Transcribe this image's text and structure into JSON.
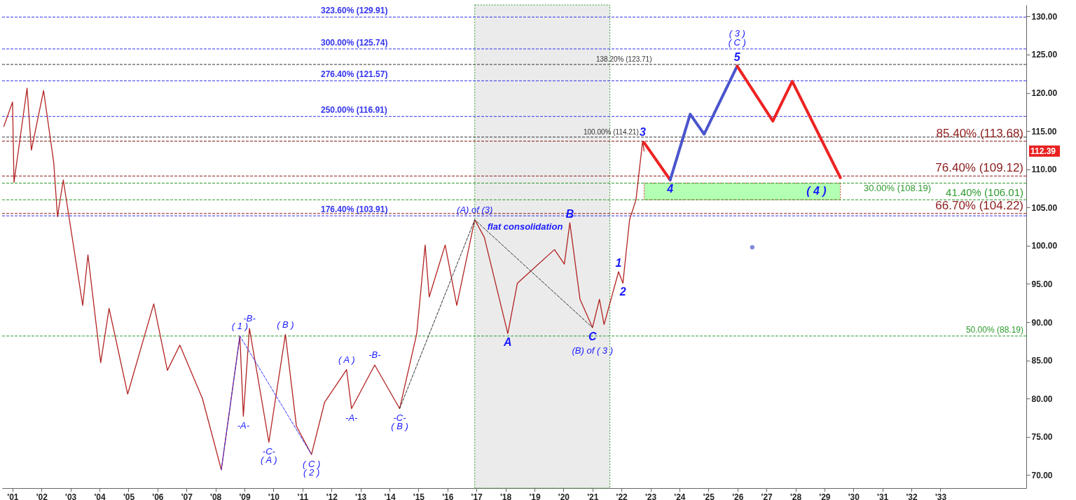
{
  "chart_data": {
    "type": "line",
    "xlim": [
      2000.64,
      2035.96
    ],
    "ylim": [
      68.3,
      131.5
    ],
    "xticks": [
      {
        "value": 2001,
        "label": "'01"
      },
      {
        "value": 2002,
        "label": "'02"
      },
      {
        "value": 2003,
        "label": "'03"
      },
      {
        "value": 2004,
        "label": "'04"
      },
      {
        "value": 2005,
        "label": "'05"
      },
      {
        "value": 2006,
        "label": "'06"
      },
      {
        "value": 2007,
        "label": "'07"
      },
      {
        "value": 2008,
        "label": "'08"
      },
      {
        "value": 2009,
        "label": "'09"
      },
      {
        "value": 2010,
        "label": "'10"
      },
      {
        "value": 2011,
        "label": "'11"
      },
      {
        "value": 2012,
        "label": "'12"
      },
      {
        "value": 2013,
        "label": "'13"
      },
      {
        "value": 2014,
        "label": "'14"
      },
      {
        "value": 2015,
        "label": "'15"
      },
      {
        "value": 2016,
        "label": "'16"
      },
      {
        "value": 2017,
        "label": "'17"
      },
      {
        "value": 2018,
        "label": "'18"
      },
      {
        "value": 2019,
        "label": "'19"
      },
      {
        "value": 2020,
        "label": "'20"
      },
      {
        "value": 2021,
        "label": "'21"
      },
      {
        "value": 2022,
        "label": "'22"
      },
      {
        "value": 2023,
        "label": "'23"
      },
      {
        "value": 2024,
        "label": "'24"
      },
      {
        "value": 2025,
        "label": "'25"
      },
      {
        "value": 2026,
        "label": "'26"
      },
      {
        "value": 2027,
        "label": "'27"
      },
      {
        "value": 2028,
        "label": "'28"
      },
      {
        "value": 2029,
        "label": "'29"
      },
      {
        "value": 2030,
        "label": "'30"
      },
      {
        "value": 2031,
        "label": "'31"
      },
      {
        "value": 2032,
        "label": "'32"
      },
      {
        "value": 2033,
        "label": "'33"
      }
    ],
    "yticks": [
      {
        "value": 70,
        "label": "70.00"
      },
      {
        "value": 75,
        "label": "75.00"
      },
      {
        "value": 80,
        "label": "80.00"
      },
      {
        "value": 85,
        "label": "85.00"
      },
      {
        "value": 90,
        "label": "90.00"
      },
      {
        "value": 95,
        "label": "95.00"
      },
      {
        "value": 100,
        "label": "100.00"
      },
      {
        "value": 105,
        "label": "105.00"
      },
      {
        "value": 110,
        "label": "110.00"
      },
      {
        "value": 115,
        "label": "115.00"
      },
      {
        "value": 120,
        "label": "120.00"
      },
      {
        "value": 125,
        "label": "125.00"
      },
      {
        "value": 130,
        "label": "130.00"
      }
    ],
    "grid": false,
    "series": [
      {
        "color": "#b22222",
        "line_style": "solid",
        "x": [
          2000.7,
          2001.0,
          2001.05,
          2001.5,
          2001.65,
          2002.07,
          2002.42,
          2002.55,
          2002.75,
          2003.42,
          2003.6,
          2004.04,
          2004.33,
          2004.97,
          2005.87,
          2006.34,
          2006.77,
          2007.55,
          2008.2,
          2008.84,
          2008.96,
          2009.17,
          2009.84,
          2010.41,
          2010.79,
          2011.31,
          2011.76,
          2012.52,
          2012.69,
          2013.49,
          2014.35,
          2014.94,
          2015.23,
          2015.37,
          2015.92,
          2016.32,
          2016.94,
          2017.27,
          2018.08,
          2018.41,
          2019.69,
          2020.03,
          2020.22,
          2020.57,
          2021.0,
          2021.24,
          2021.4,
          2021.9,
          2022.05,
          2022.28,
          2022.5,
          2022.73,
          2022.78
        ],
        "values": [
          115.6,
          118.8,
          108.3,
          120.6,
          112.5,
          120.3,
          110.9,
          103.8,
          108.6,
          92.2,
          98.8,
          84.7,
          91.8,
          80.6,
          92.4,
          83.7,
          87.0,
          80.0,
          70.7,
          88.2,
          77.7,
          89.2,
          74.3,
          88.4,
          76.4,
          72.7,
          79.5,
          83.8,
          78.7,
          84.4,
          78.7,
          88.5,
          100.1,
          93.3,
          100.1,
          92.2,
          103.4,
          101.1,
          88.5,
          95.1,
          99.5,
          97.6,
          103.0,
          93.0,
          89.3,
          93.0,
          89.7,
          96.6,
          95.1,
          103.4,
          106.0,
          113.7,
          112.39
        ]
      },
      {
        "color": "#ee2222",
        "line_style": "solid",
        "x": [
          2022.78,
          2023.68
        ],
        "values": [
          113.5,
          108.6
        ]
      },
      {
        "color": "#4a55cc",
        "line_style": "solid",
        "x": [
          2023.68,
          2024.37,
          2024.85,
          2025.99
        ],
        "values": [
          108.6,
          117.2,
          114.6,
          123.5
        ]
      },
      {
        "color": "#ee2222",
        "line_style": "solid",
        "x": [
          2025.99,
          2027.22,
          2027.89,
          2029.55
        ],
        "values": [
          123.5,
          116.3,
          121.5,
          108.9
        ]
      },
      {
        "color": "#3333ff",
        "line_style": "dotted",
        "x": [
          2008.2,
          2008.84,
          2011.31
        ],
        "values": [
          70.7,
          88.2,
          72.7
        ]
      },
      {
        "color": "#333333",
        "line_style": "dotted",
        "x": [
          2014.35,
          2016.94,
          2021.0
        ],
        "values": [
          78.7,
          103.4,
          89.3
        ]
      },
      {
        "type": "scatter",
        "marker": "circle",
        "color": "#4a55cc",
        "x": [
          2026.51
        ],
        "values": [
          99.8
        ]
      }
    ],
    "ref_lines": [
      {
        "axis": "y",
        "value": 129.91,
        "label": "323.60% (129.91)",
        "color": "#3333ee",
        "line_style": "dotted"
      },
      {
        "axis": "y",
        "value": 125.74,
        "label": "300.00% (125.74)",
        "color": "#3333ee",
        "line_style": "dotted"
      },
      {
        "axis": "y",
        "value": 121.57,
        "label": "276.40% (121.57)",
        "color": "#3333ee",
        "line_style": "dotted"
      },
      {
        "axis": "y",
        "value": 116.91,
        "label": "250.00% (116.91)",
        "color": "#3333ee",
        "line_style": "dotted"
      },
      {
        "axis": "y",
        "value": 103.91,
        "label": "176.40% (103.91)",
        "color": "#3333ee",
        "line_style": "dotted"
      },
      {
        "axis": "y",
        "value": 123.71,
        "label": "138.20% (123.71)",
        "color": "#333333",
        "line_style": "dotted"
      },
      {
        "axis": "y",
        "value": 114.21,
        "label": "100.00% (114.21)",
        "color": "#333333",
        "line_style": "dotted"
      },
      {
        "axis": "y",
        "value": 113.68,
        "label": "85.40% (113.68)",
        "color": "#8b1a1a",
        "line_style": "dotted"
      },
      {
        "axis": "y",
        "value": 109.12,
        "label": "76.40% (109.12)",
        "color": "#8b1a1a",
        "line_style": "dotted"
      },
      {
        "axis": "y",
        "value": 104.22,
        "label": "66.70% (104.22)",
        "color": "#8b1a1a",
        "line_style": "dotted"
      },
      {
        "axis": "y",
        "value": 108.19,
        "label": "30.00% (108.19)",
        "color": "#2e9a2e",
        "line_style": "dotted"
      },
      {
        "axis": "y",
        "value": 106.01,
        "label": "41.40% (106.01)",
        "color": "#2e9a2e",
        "line_style": "dotted"
      },
      {
        "axis": "y",
        "value": 88.19,
        "label": "50.00% (88.19)",
        "color": "#2e9a2e",
        "line_style": "dotted"
      }
    ],
    "bands": [
      {
        "axis": "x",
        "from": 2016.94,
        "to": 2021.6,
        "label": "flat consolidation",
        "color": "#ebebeb"
      },
      {
        "axis": "y",
        "from": 106.01,
        "to": 108.19,
        "label": "( 4 )",
        "color": "#b3ffb3"
      }
    ],
    "annotations": [
      "112.39",
      {
        "text": "( 1 )",
        "x": 2008.84,
        "y": 88.2
      },
      {
        "text": "-B-",
        "x": 2009.17,
        "y": 89.2
      },
      {
        "text": "( B )",
        "x": 2010.41,
        "y": 88.4
      },
      {
        "text": "-A-",
        "x": 2008.96,
        "y": 77.7
      },
      {
        "text": "-C-",
        "x": 2009.84,
        "y": 74.3
      },
      {
        "text": "( A )",
        "x": 2009.84,
        "y": 74.3
      },
      {
        "text": "( C )",
        "x": 2011.31,
        "y": 72.7
      },
      {
        "text": "( 2 )",
        "x": 2011.31,
        "y": 72.7
      },
      {
        "text": "( A )",
        "x": 2012.52,
        "y": 83.8
      },
      {
        "text": "-A-",
        "x": 2012.69,
        "y": 78.7
      },
      {
        "text": "-B-",
        "x": 2013.49,
        "y": 84.4
      },
      {
        "text": "-C-",
        "x": 2014.35,
        "y": 78.7
      },
      {
        "text": "( B )",
        "x": 2014.35,
        "y": 78.7
      },
      {
        "text": "(A) of (3)",
        "x": 2016.94,
        "y": 103.4
      },
      {
        "text": "B",
        "x": 2020.22,
        "y": 103.0
      },
      {
        "text": "A",
        "x": 2018.08,
        "y": 88.5
      },
      {
        "text": "C",
        "x": 2021.0,
        "y": 89.3
      },
      {
        "text": "(B) of ( 3 )",
        "x": 2021.0,
        "y": 89.3
      },
      {
        "text": "1",
        "x": 2021.9,
        "y": 96.6
      },
      {
        "text": "2",
        "x": 2022.05,
        "y": 95.1
      },
      {
        "text": "3",
        "x": 2022.73,
        "y": 113.7
      },
      {
        "text": "4",
        "x": 2023.68,
        "y": 108.6
      },
      {
        "text": "5",
        "x": 2025.99,
        "y": 123.5
      },
      {
        "text": "( C )",
        "x": 2025.99,
        "y": 123.5
      },
      "( 3 )"
    ]
  }
}
